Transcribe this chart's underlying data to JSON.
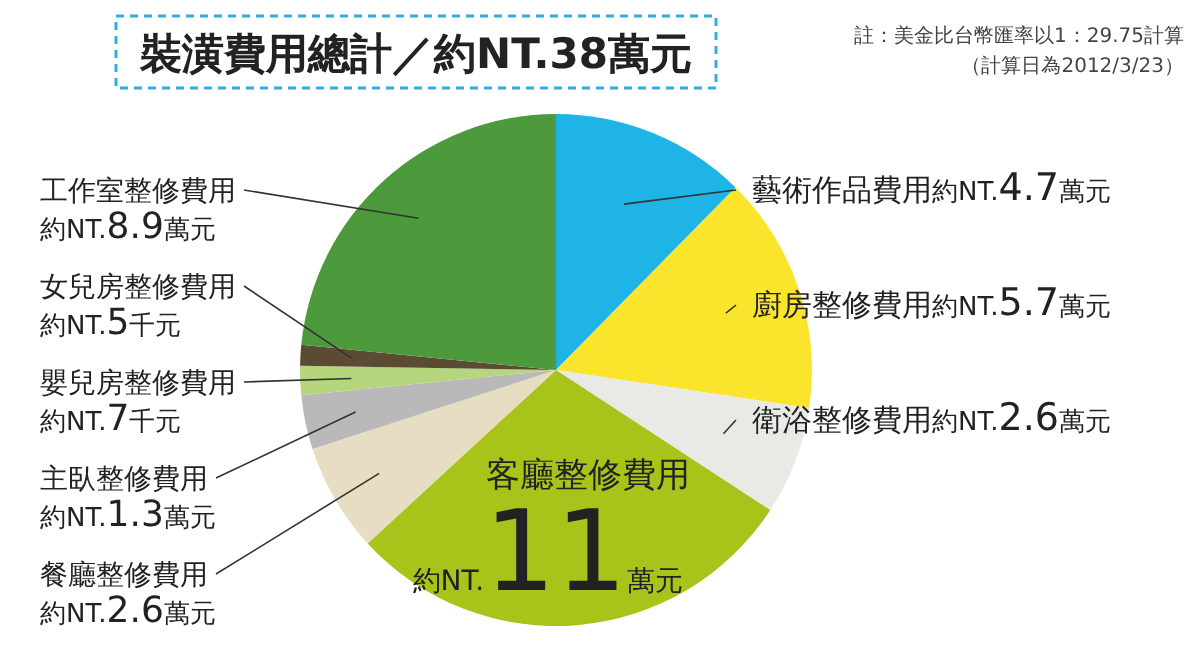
{
  "chart_data": {
    "type": "pie",
    "title": "裝潢費用總計／約NT.38萬元",
    "categories": [
      "藝術作品費用",
      "廚房整修費用",
      "衛浴整修費用",
      "客廳整修費用",
      "餐廳整修費用",
      "主臥整修費用",
      "嬰兒房整修費用",
      "女兒房整修費用",
      "工作室整修費用"
    ],
    "values": [
      4.7,
      5.7,
      2.6,
      11,
      2.6,
      1.3,
      0.7,
      0.5,
      8.9
    ],
    "value_labels": [
      "約NT.4.7萬元",
      "約NT.5.7萬元",
      "約NT.2.6萬元",
      "約NT.11萬元",
      "約NT.2.6萬元",
      "約NT.1.3萬元",
      "約NT.7千元",
      "約NT.5千元",
      "約NT.8.9萬元"
    ],
    "colors": [
      "#1fb4e6",
      "#fbe52c",
      "#e9e9e6",
      "#a8c41b",
      "#e6ddc2",
      "#b9b9b9",
      "#b5d67c",
      "#5b4b33",
      "#4d9a3d"
    ],
    "annotations": [
      "註：美金比台幣匯率以1：29.75計算",
      "（計算日為2012/3/23）"
    ]
  }
}
